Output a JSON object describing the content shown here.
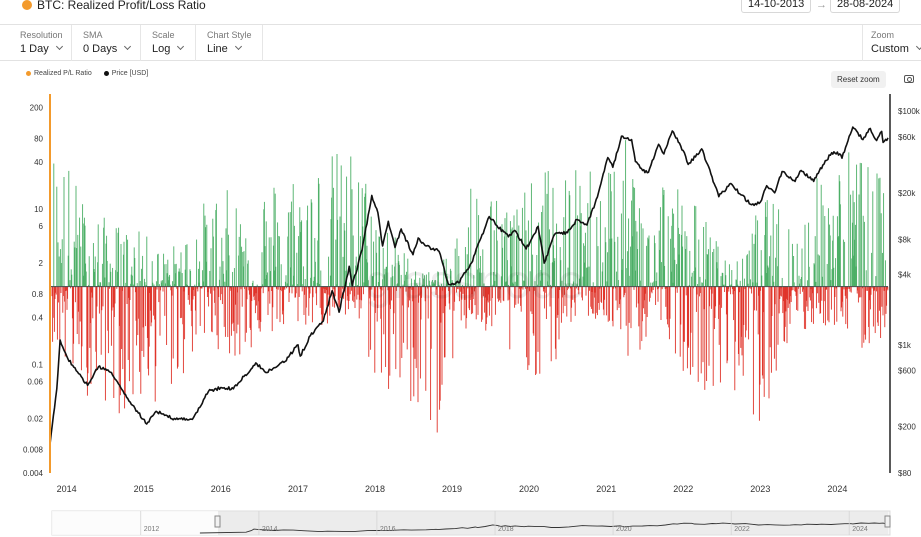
{
  "header": {
    "title": "BTC: Realized Profit/Loss Ratio",
    "date_from": "14-10-2013",
    "date_to": "28-08-2024",
    "date_arrow": "→"
  },
  "controls": {
    "resolution": {
      "label": "Resolution",
      "value": "1 Day"
    },
    "sma": {
      "label": "SMA",
      "value": "0 Days"
    },
    "scale": {
      "label": "Scale",
      "value": "Log"
    },
    "chart_style": {
      "label": "Chart Style",
      "value": "Line"
    },
    "zoom": {
      "label": "Zoom",
      "value": "Custom"
    }
  },
  "toolbar": {
    "reset_zoom_label": "Reset zoom",
    "camera_icon": "camera-icon"
  },
  "colors": {
    "ratio_marker": "#f39a2c",
    "profit": "#4caf66",
    "loss": "#e0342a",
    "price": "#111111"
  },
  "watermark": "glassnode",
  "chart_data": {
    "type": "bar",
    "title": "BTC: Realized Profit/Loss Ratio",
    "x_ticks": [
      "2014",
      "2015",
      "2016",
      "2017",
      "2018",
      "2019",
      "2020",
      "2021",
      "2022",
      "2023",
      "2024"
    ],
    "x_range": [
      "2013-10-14",
      "2024-08-28"
    ],
    "left_axis": {
      "scale": "log",
      "range": [
        0.004,
        300
      ],
      "ticks": [
        "200",
        "80",
        "40",
        "10",
        "6",
        "2",
        "0.8",
        "0.4",
        "0.1",
        "0.06",
        "0.02",
        "0.008",
        "0.004"
      ]
    },
    "right_axis": {
      "scale": "log",
      "range": [
        80,
        140000
      ],
      "ticks": [
        "$100k",
        "$60k",
        "$20k",
        "$8k",
        "$4k",
        "$1k",
        "$600",
        "$200",
        "$80"
      ]
    },
    "baseline": 1,
    "series": [
      {
        "name": "Realized P/L Ratio",
        "axis": "left",
        "style": "bars",
        "colors": {
          "above_baseline": "#4caf66",
          "below_baseline": "#e0342a"
        },
        "monthly_envelope": {
          "x": [
            "2013-10",
            "2014-01",
            "2014-04",
            "2014-07",
            "2014-10",
            "2015-01",
            "2015-04",
            "2015-07",
            "2015-10",
            "2016-01",
            "2016-04",
            "2016-07",
            "2016-10",
            "2017-01",
            "2017-04",
            "2017-07",
            "2017-10",
            "2018-01",
            "2018-04",
            "2018-07",
            "2018-10",
            "2019-01",
            "2019-04",
            "2019-07",
            "2019-10",
            "2020-01",
            "2020-04",
            "2020-07",
            "2020-10",
            "2021-01",
            "2021-04",
            "2021-07",
            "2021-10",
            "2022-01",
            "2022-04",
            "2022-07",
            "2022-10",
            "2023-01",
            "2023-04",
            "2023-07",
            "2023-10",
            "2024-01",
            "2024-04",
            "2024-07"
          ],
          "peak_high": [
            110,
            50,
            12,
            8,
            6,
            5,
            3,
            4,
            12,
            20,
            15,
            25,
            30,
            40,
            50,
            60,
            70,
            15,
            5,
            2,
            1.5,
            3,
            30,
            20,
            15,
            20,
            40,
            30,
            40,
            60,
            80,
            20,
            40,
            20,
            10,
            3,
            2,
            15,
            12,
            6,
            30,
            60,
            80,
            30
          ],
          "trough_low": [
            0.3,
            0.06,
            0.04,
            0.03,
            0.02,
            0.03,
            0.03,
            0.06,
            0.2,
            0.15,
            0.1,
            0.2,
            0.25,
            0.3,
            0.3,
            0.3,
            0.4,
            0.06,
            0.02,
            0.03,
            0.006,
            0.1,
            0.3,
            0.2,
            0.1,
            0.08,
            0.04,
            0.3,
            0.4,
            0.3,
            0.1,
            0.15,
            0.3,
            0.08,
            0.05,
            0.03,
            0.04,
            0.015,
            0.1,
            0.2,
            0.3,
            0.3,
            0.1,
            0.2
          ]
        }
      },
      {
        "name": "Price [USD]",
        "axis": "right",
        "style": "line",
        "color": "#111111",
        "x": [
          "2013-10-14",
          "2013-11-15",
          "2013-12-01",
          "2014-01-01",
          "2014-02-15",
          "2014-04-10",
          "2014-06-01",
          "2014-08-01",
          "2014-10-01",
          "2015-01-15",
          "2015-03-01",
          "2015-06-01",
          "2015-08-20",
          "2015-11-04",
          "2016-01-01",
          "2016-03-01",
          "2016-06-15",
          "2016-08-01",
          "2016-11-01",
          "2017-01-01",
          "2017-01-12",
          "2017-03-01",
          "2017-05-01",
          "2017-06-12",
          "2017-07-15",
          "2017-09-01",
          "2017-09-15",
          "2017-11-01",
          "2017-12-17",
          "2018-01-15",
          "2018-02-06",
          "2018-03-05",
          "2018-04-06",
          "2018-05-05",
          "2018-06-30",
          "2018-07-25",
          "2018-09-01",
          "2018-11-01",
          "2018-12-15",
          "2019-02-01",
          "2019-04-03",
          "2019-06-26",
          "2019-08-01",
          "2019-09-25",
          "2019-10-26",
          "2019-12-18",
          "2020-02-13",
          "2020-03-13",
          "2020-05-01",
          "2020-07-01",
          "2020-08-15",
          "2020-10-01",
          "2020-11-20",
          "2021-01-08",
          "2021-02-01",
          "2021-03-14",
          "2021-05-01",
          "2021-05-19",
          "2021-06-22",
          "2021-07-20",
          "2021-09-06",
          "2021-10-01",
          "2021-11-10",
          "2021-12-31",
          "2022-01-24",
          "2022-03-29",
          "2022-05-12",
          "2022-06-18",
          "2022-08-14",
          "2022-10-01",
          "2022-11-21",
          "2023-01-01",
          "2023-01-31",
          "2023-03-10",
          "2023-04-14",
          "2023-06-15",
          "2023-07-13",
          "2023-09-11",
          "2023-10-24",
          "2023-12-05",
          "2024-01-12",
          "2024-01-23",
          "2024-02-15",
          "2024-03-14",
          "2024-05-01",
          "2024-06-05",
          "2024-07-05",
          "2024-07-29",
          "2024-08-05",
          "2024-08-28"
        ],
        "y": [
          140,
          420,
          1100,
          800,
          600,
          450,
          650,
          580,
          380,
          210,
          270,
          230,
          230,
          400,
          430,
          420,
          700,
          580,
          720,
          1000,
          800,
          1200,
          1600,
          2900,
          1900,
          4700,
          3200,
          6500,
          19000,
          13500,
          7000,
          11400,
          6800,
          9800,
          5900,
          8200,
          7000,
          6300,
          3300,
          3400,
          5000,
          12500,
          10500,
          8400,
          9500,
          6600,
          10300,
          5000,
          8800,
          9100,
          11800,
          10600,
          18400,
          40000,
          33000,
          61000,
          57000,
          37000,
          31000,
          30000,
          52000,
          43000,
          67500,
          46000,
          35000,
          47500,
          29000,
          18500,
          24000,
          19200,
          15800,
          16600,
          23000,
          20000,
          30400,
          25000,
          31000,
          25000,
          34500,
          44000,
          43000,
          39500,
          52000,
          73000,
          57000,
          71000,
          56000,
          67000,
          54000,
          59000
        ]
      }
    ],
    "x_axis_labels_visible": true,
    "grid": false,
    "legend": {
      "position": "top-left",
      "entries": [
        "Realized P/L Ratio",
        "Price [USD]"
      ]
    },
    "navigator": {
      "x_ticks": [
        "2012",
        "2014",
        "2016",
        "2018",
        "2020",
        "2022",
        "2024"
      ]
    }
  }
}
